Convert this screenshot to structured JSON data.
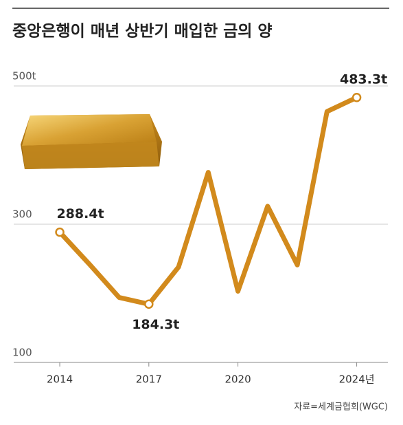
{
  "chart_data": {
    "type": "line",
    "title": "중앙은행이 매년 상반기 매입한 금의 양",
    "source": "자료=세계금협회(WGC)",
    "x": [
      2014,
      2015,
      2016,
      2017,
      2018,
      2019,
      2020,
      2021,
      2022,
      2023,
      2024
    ],
    "values": [
      288.4,
      242,
      194,
      184.3,
      238,
      375,
      203,
      326,
      241,
      463,
      483.3
    ],
    "value_labels": [
      "288.4t",
      null,
      null,
      "184.3t",
      null,
      null,
      null,
      null,
      null,
      null,
      "483.3t"
    ],
    "color": "#d28a1c",
    "xlim": [
      2012.45,
      2025.05
    ],
    "xticks": [
      2014,
      2017,
      2020,
      {
        "value": 2024,
        "label": "2024년"
      }
    ],
    "ylim": [
      100,
      500
    ],
    "yticks": [
      {
        "value": 500,
        "label": "500t"
      },
      300,
      100
    ],
    "grid": true
  }
}
